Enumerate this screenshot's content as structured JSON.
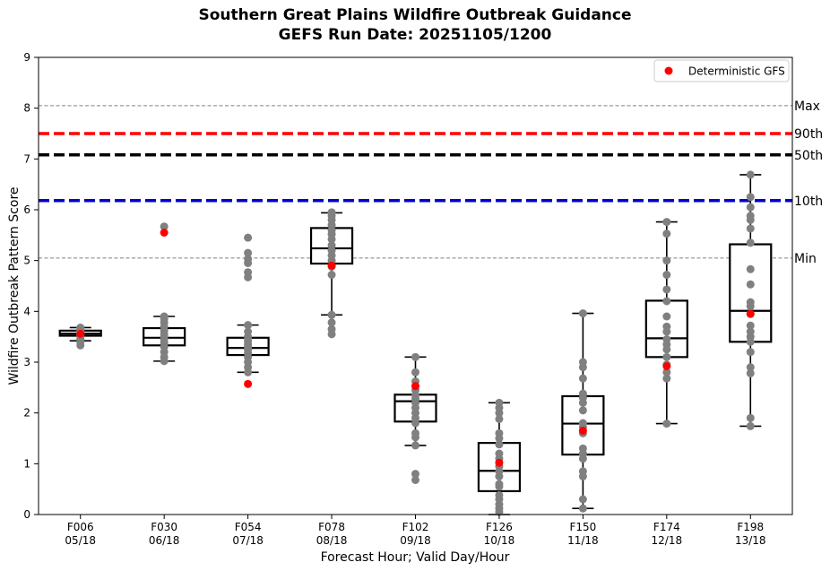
{
  "chart_data": {
    "type": "box",
    "title": "Southern Great Plains Wildfire Outbreak Guidance",
    "subtitle": "GEFS Run Date: 20251105/1200",
    "xlabel": "Forecast Hour; Valid Day/Hour",
    "ylabel": "Wildfire Outbreak Pattern Score",
    "ylim": [
      0,
      9
    ],
    "yticks": [
      "0",
      "1",
      "2",
      "3",
      "4",
      "5",
      "6",
      "7",
      "8",
      "9"
    ],
    "legend": {
      "label": "Deterministic GFS",
      "position": "top-right",
      "color": "#ff0000"
    },
    "reference_lines": [
      {
        "label": "Max",
        "value": 8.05,
        "style": "thin-dashed",
        "color": "#808080"
      },
      {
        "label": "90th",
        "value": 7.5,
        "style": "bold-dashed",
        "color": "#ff0000"
      },
      {
        "label": "50th",
        "value": 7.08,
        "style": "bold-dashed",
        "color": "#000000"
      },
      {
        "label": "10th",
        "value": 6.18,
        "style": "bold-dashed",
        "color": "#0000cc"
      },
      {
        "label": "Min",
        "value": 5.05,
        "style": "thin-dashed",
        "color": "#808080"
      }
    ],
    "categories": [
      {
        "hour": "F006",
        "valid": "05/18",
        "q1": 3.52,
        "median": 3.56,
        "q3": 3.62,
        "whisker_low": 3.42,
        "whisker_high": 3.68,
        "gfs": 3.56,
        "members": [
          3.33,
          3.4,
          3.45,
          3.5,
          3.53,
          3.55,
          3.57,
          3.6,
          3.62,
          3.65,
          3.68
        ]
      },
      {
        "hour": "F030",
        "valid": "06/18",
        "q1": 3.33,
        "median": 3.48,
        "q3": 3.67,
        "whisker_low": 3.02,
        "whisker_high": 3.9,
        "gfs": 5.55,
        "members": [
          5.67,
          3.02,
          3.1,
          3.2,
          3.3,
          3.38,
          3.45,
          3.5,
          3.55,
          3.62,
          3.7,
          3.78,
          3.85,
          3.9
        ]
      },
      {
        "hour": "F054",
        "valid": "07/18",
        "q1": 3.14,
        "median": 3.28,
        "q3": 3.48,
        "whisker_low": 2.8,
        "whisker_high": 3.73,
        "gfs": 2.57,
        "members": [
          5.45,
          5.15,
          5.03,
          4.95,
          4.77,
          4.67,
          2.8,
          2.9,
          3.0,
          3.1,
          3.18,
          3.25,
          3.3,
          3.35,
          3.42,
          3.5,
          3.6,
          3.73
        ]
      },
      {
        "hour": "F078",
        "valid": "08/18",
        "q1": 4.94,
        "median": 5.24,
        "q3": 5.64,
        "whisker_low": 3.93,
        "whisker_high": 5.94,
        "gfs": 4.9,
        "members": [
          5.95,
          5.88,
          5.8,
          5.7,
          5.6,
          5.52,
          5.42,
          5.3,
          5.2,
          5.1,
          5.0,
          4.88,
          4.72,
          3.93,
          3.78,
          3.65,
          3.55
        ]
      },
      {
        "hour": "F102",
        "valid": "09/18",
        "q1": 1.83,
        "median": 2.23,
        "q3": 2.36,
        "whisker_low": 1.36,
        "whisker_high": 3.1,
        "gfs": 2.53,
        "members": [
          3.1,
          2.8,
          2.62,
          2.45,
          2.35,
          2.28,
          2.2,
          2.1,
          2.0,
          1.9,
          1.8,
          1.6,
          1.52,
          1.36,
          0.8,
          0.68
        ]
      },
      {
        "hour": "F126",
        "valid": "10/18",
        "q1": 0.46,
        "median": 0.86,
        "q3": 1.41,
        "whisker_low": 0.0,
        "whisker_high": 2.2,
        "gfs": 1.02,
        "members": [
          2.2,
          2.1,
          2.0,
          1.88,
          1.6,
          1.5,
          1.38,
          1.2,
          1.1,
          0.95,
          0.85,
          0.75,
          0.6,
          0.55,
          0.38,
          0.3,
          0.2,
          0.12,
          0.05
        ]
      },
      {
        "hour": "F150",
        "valid": "11/18",
        "q1": 1.18,
        "median": 1.79,
        "q3": 2.33,
        "whisker_low": 0.12,
        "whisker_high": 3.96,
        "gfs": 1.65,
        "members": [
          3.96,
          3.0,
          2.9,
          2.68,
          2.38,
          2.3,
          2.2,
          2.05,
          1.8,
          1.72,
          1.6,
          1.3,
          1.2,
          1.1,
          0.85,
          0.75,
          0.3,
          0.12
        ]
      },
      {
        "hour": "F174",
        "valid": "12/18",
        "q1": 3.1,
        "median": 3.47,
        "q3": 4.21,
        "whisker_low": 1.79,
        "whisker_high": 5.76,
        "gfs": 2.92,
        "members": [
          5.76,
          5.53,
          5.0,
          4.72,
          4.43,
          4.2,
          3.9,
          3.7,
          3.6,
          3.45,
          3.35,
          3.25,
          3.1,
          2.95,
          2.8,
          2.68,
          1.79
        ]
      },
      {
        "hour": "F198",
        "valid": "13/18",
        "q1": 3.4,
        "median": 4.01,
        "q3": 5.32,
        "whisker_low": 1.74,
        "whisker_high": 6.69,
        "gfs": 3.95,
        "members": [
          6.69,
          6.25,
          6.05,
          5.88,
          5.8,
          5.63,
          5.35,
          4.83,
          4.53,
          4.18,
          4.1,
          3.95,
          3.72,
          3.6,
          3.5,
          3.4,
          3.2,
          2.9,
          2.78,
          1.9,
          1.74
        ]
      }
    ]
  }
}
